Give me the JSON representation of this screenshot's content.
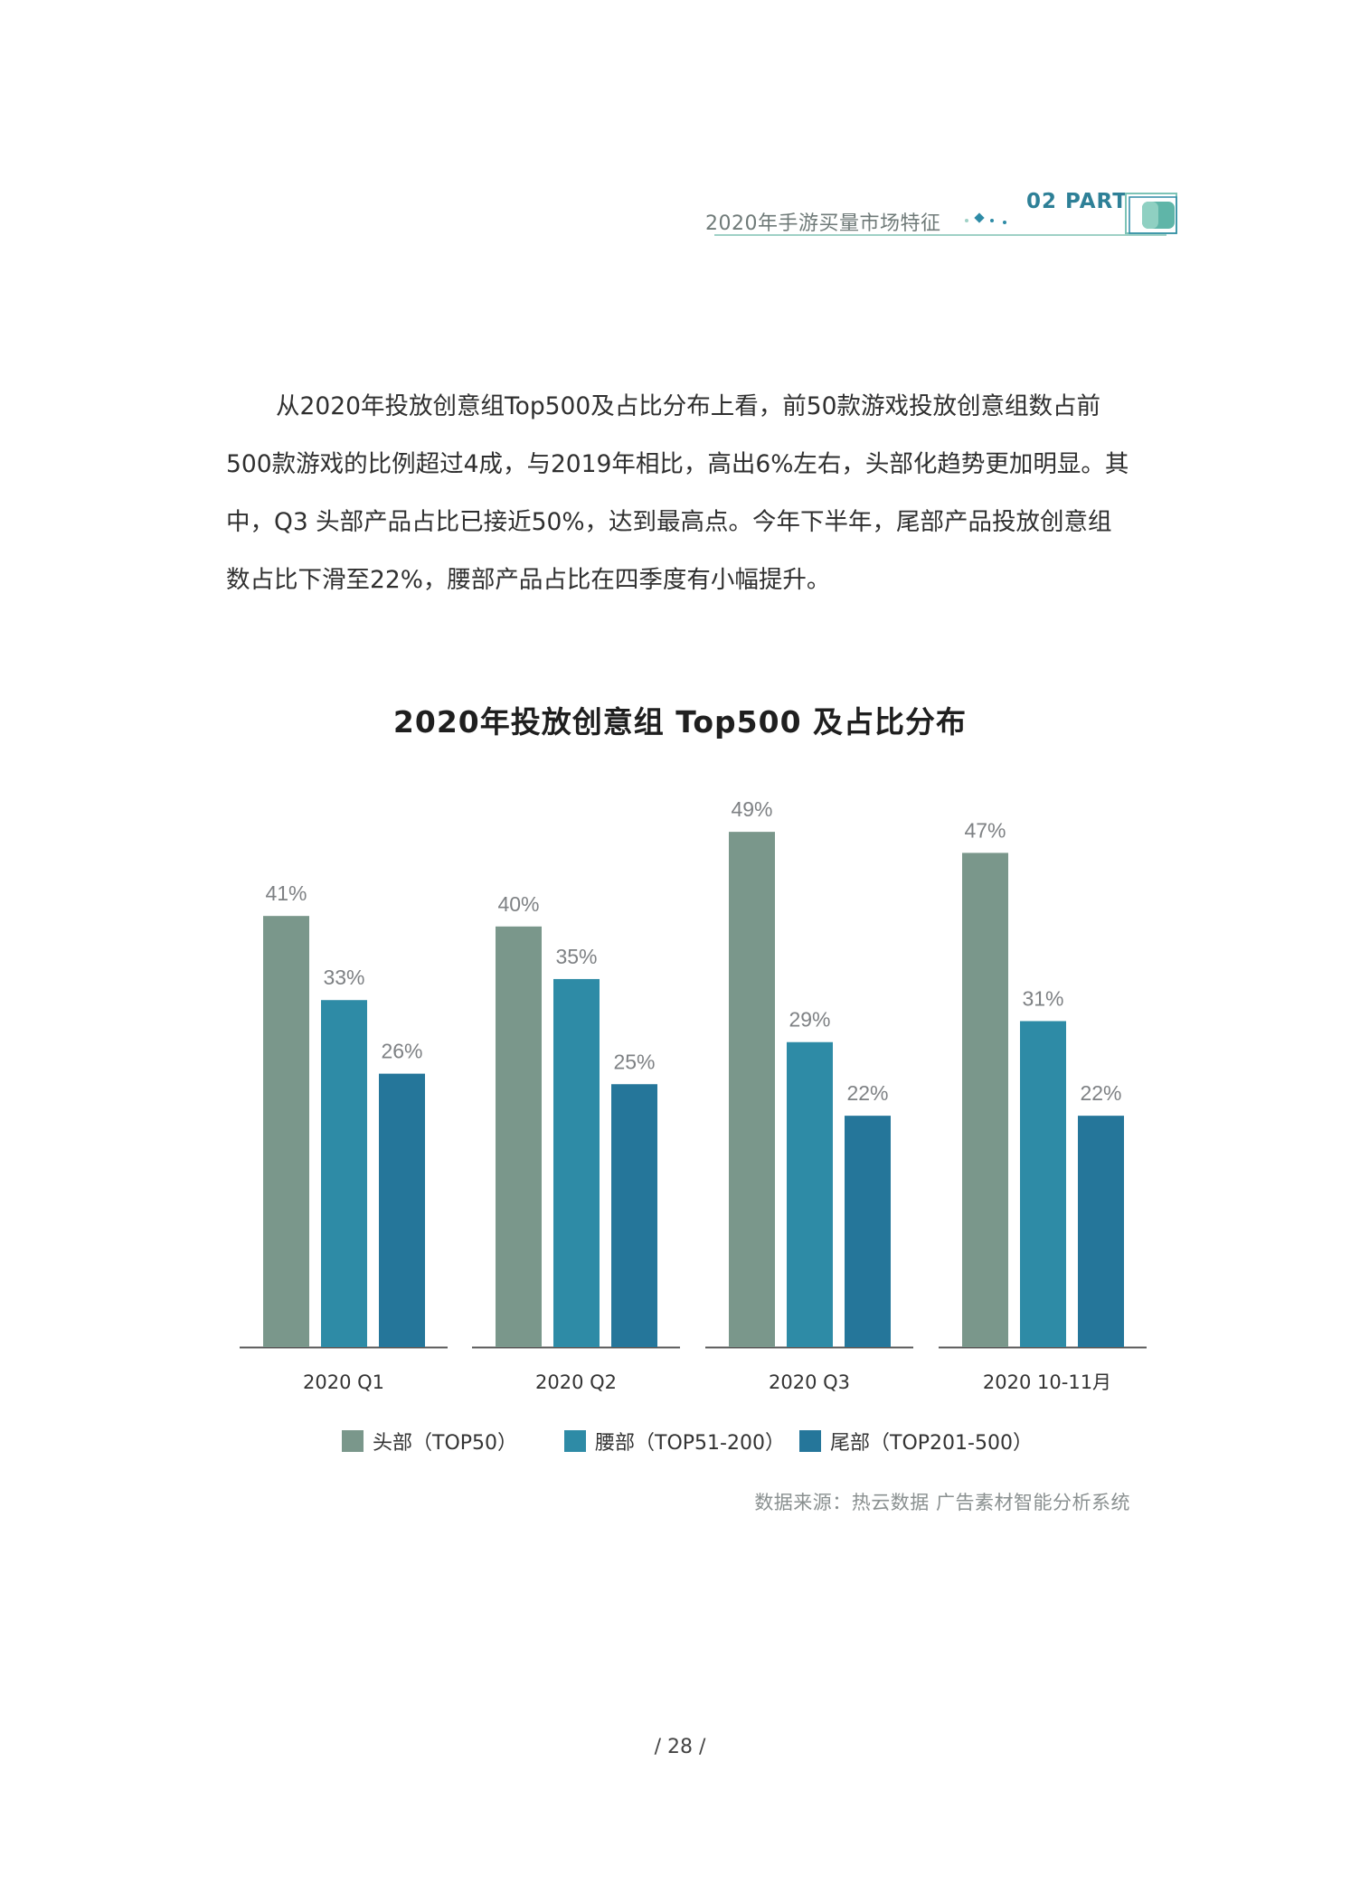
{
  "header": {
    "section_title": "2020年手游买量市场特征",
    "part_label": "02 PART"
  },
  "body_text": "从2020年投放创意组Top500及占比分布上看，前50款游戏投放创意组数占前500款游戏的比例超过4成，与2019年相比，高出6%左右，头部化趋势更加明显。其中，Q3 头部产品占比已接近50%，达到最高点。今年下半年，尾部产品投放创意组数占比下滑至22%，腰部产品占比在四季度有小幅提升。",
  "chart_data": {
    "type": "bar",
    "title": "2020年投放创意组 Top500 及占比分布",
    "categories": [
      "2020 Q1",
      "2020 Q2",
      "2020 Q3",
      "2020 10-11月"
    ],
    "series": [
      {
        "name": "头部（TOP50）",
        "values": [
          41,
          40,
          49,
          47
        ],
        "color": "#7a978b"
      },
      {
        "name": "腰部（TOP51-200）",
        "values": [
          33,
          35,
          29,
          31
        ],
        "color": "#2e8ba6"
      },
      {
        "name": "尾部（TOP201-500）",
        "values": [
          26,
          25,
          22,
          22
        ],
        "color": "#25769a"
      }
    ],
    "value_suffix": "%",
    "ylim": [
      0,
      55
    ],
    "grid": false,
    "legend_position": "bottom",
    "label_color": "#7e8184",
    "axis_color": "#555555"
  },
  "source": "数据来源：热云数据 广告素材智能分析系统",
  "page_number": "/ 28 /"
}
